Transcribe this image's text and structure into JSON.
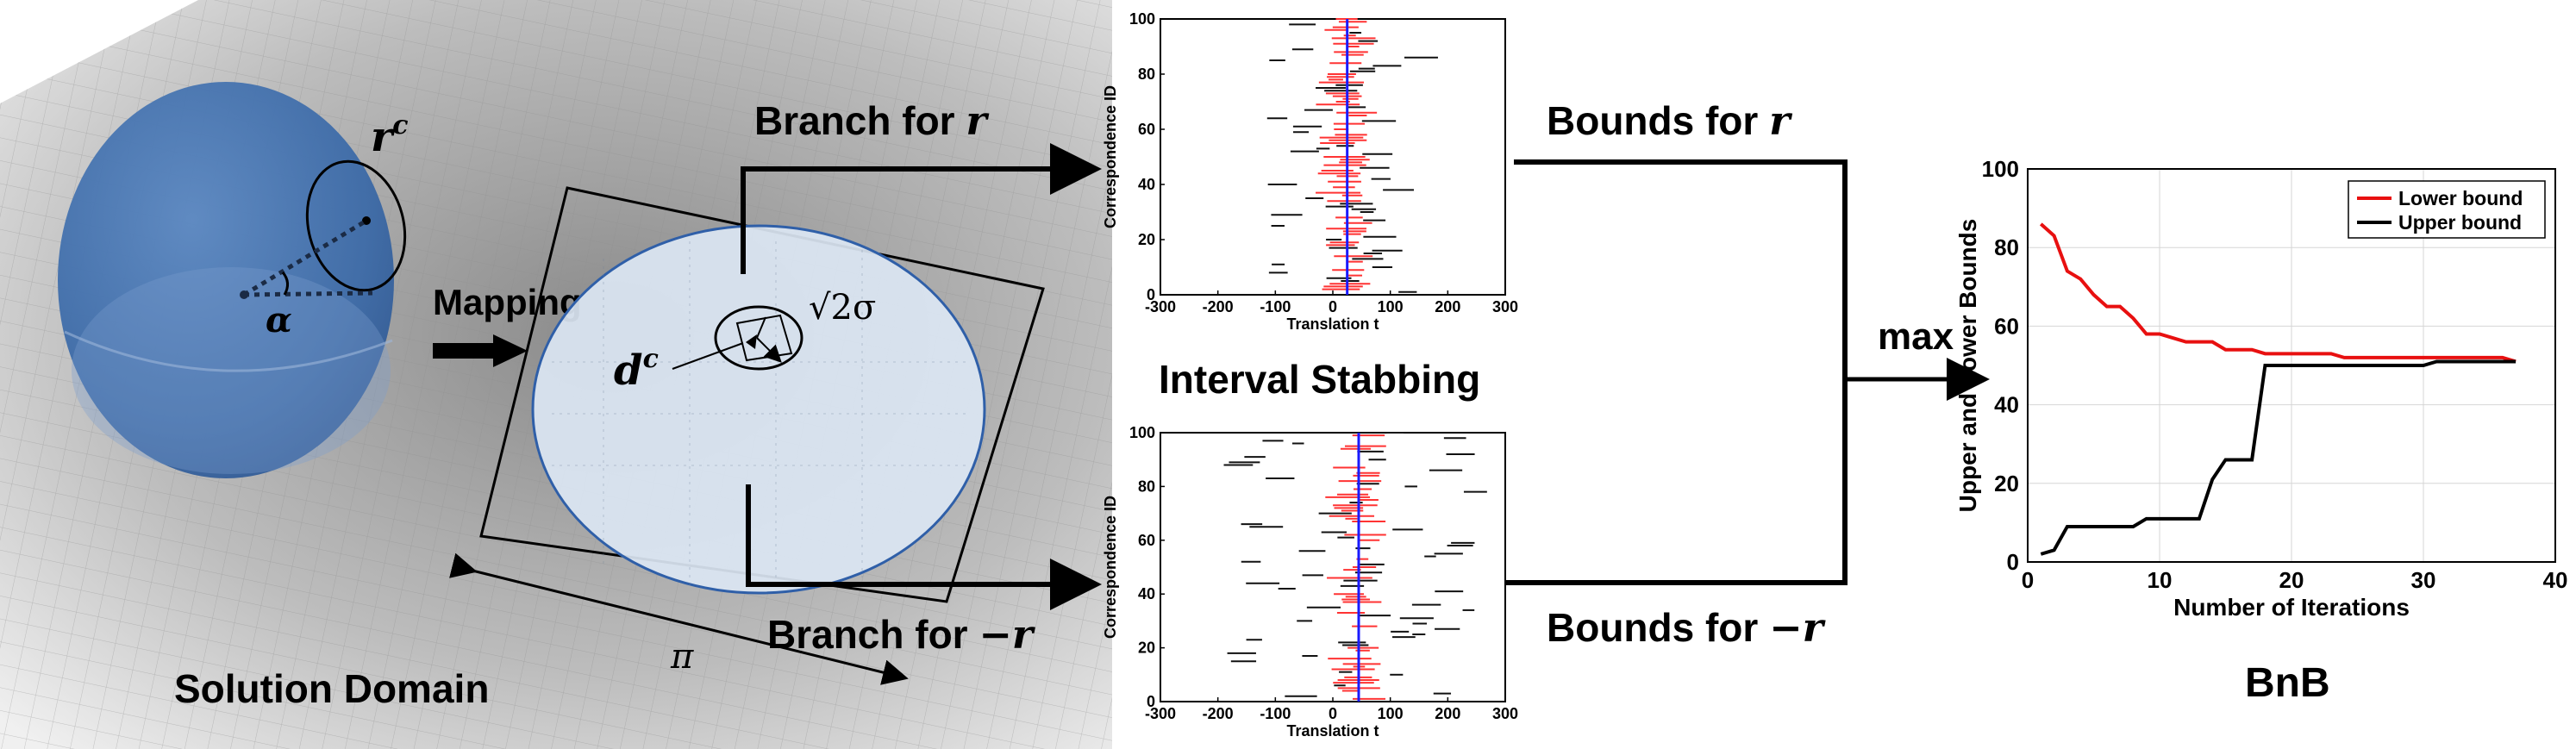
{
  "labels": {
    "solution_domain": "Solution Domain",
    "mapping": "Mapping",
    "branch_r": "Branch for ",
    "branch_neg_r": "Branch for ",
    "bounds_r": "Bounds for ",
    "bounds_neg_r": "Bounds for ",
    "interval_stabbing": "Interval Stabbing",
    "max": "max",
    "bnb": "BnB",
    "alpha": "α",
    "pi": "π",
    "rc_base": "r",
    "rc_sup": "c",
    "dc_base": "d",
    "dc_sup": "c",
    "sqrt2sigma": "√2σ",
    "r_sym": "r",
    "neg_r_sym": "−r"
  },
  "chart_data": [
    {
      "type": "scatter",
      "title": "",
      "xlabel": "Translation t",
      "ylabel": "Correspondence ID",
      "xlim": [
        -300,
        300
      ],
      "ylim": [
        0,
        100
      ],
      "xticks": [
        -300,
        -200,
        -100,
        0,
        100,
        200,
        300
      ],
      "yticks": [
        0,
        20,
        40,
        60,
        80,
        100
      ],
      "vline_x": 25,
      "colors": {
        "inlier": "#ff3333",
        "outlier": "#111111",
        "vline": "#1a1aff"
      },
      "note_intervals": "horizontal intervals per correspondence"
    },
    {
      "type": "scatter",
      "title": "",
      "xlabel": "Translation t",
      "ylabel": "Correspondence ID",
      "xlim": [
        -300,
        300
      ],
      "ylim": [
        0,
        100
      ],
      "xticks": [
        -300,
        -200,
        -100,
        0,
        100,
        200,
        300
      ],
      "yticks": [
        0,
        20,
        40,
        60,
        80,
        100
      ],
      "vline_x": 45,
      "colors": {
        "inlier": "#ff3333",
        "outlier": "#111111",
        "vline": "#1a1aff"
      }
    },
    {
      "type": "line",
      "title": "",
      "xlabel": "Number of Iterations",
      "ylabel": "Upper and Lower Bounds",
      "xlim": [
        0,
        40
      ],
      "ylim": [
        0,
        100
      ],
      "xticks": [
        0,
        10,
        20,
        30,
        40
      ],
      "yticks": [
        0,
        20,
        40,
        60,
        80,
        100
      ],
      "grid": true,
      "legend_position": "top-right",
      "series": [
        {
          "name": "Lower bound",
          "color": "#e81010",
          "x": [
            1,
            2,
            3,
            4,
            5,
            6,
            7,
            8,
            9,
            10,
            11,
            12,
            13,
            14,
            15,
            16,
            17,
            18,
            19,
            20,
            21,
            22,
            23,
            24,
            25,
            26,
            27,
            28,
            29,
            30,
            31,
            32,
            33,
            34,
            35,
            36,
            37
          ],
          "y": [
            86,
            83,
            74,
            72,
            68,
            65,
            65,
            62,
            58,
            58,
            57,
            56,
            56,
            56,
            54,
            54,
            54,
            53,
            53,
            53,
            53,
            53,
            53,
            52,
            52,
            52,
            52,
            52,
            52,
            52,
            52,
            52,
            52,
            52,
            52,
            52,
            51
          ]
        },
        {
          "name": "Upper bound",
          "color": "#000000",
          "x": [
            1,
            2,
            3,
            4,
            5,
            6,
            7,
            8,
            9,
            10,
            11,
            12,
            13,
            14,
            15,
            16,
            17,
            18,
            19,
            20,
            21,
            22,
            23,
            24,
            25,
            26,
            27,
            28,
            29,
            30,
            31,
            32,
            33,
            34,
            35,
            36,
            37
          ],
          "y": [
            2,
            3,
            9,
            9,
            9,
            9,
            9,
            9,
            11,
            11,
            11,
            11,
            11,
            21,
            26,
            26,
            26,
            50,
            50,
            50,
            50,
            50,
            50,
            50,
            50,
            50,
            50,
            50,
            50,
            50,
            51,
            51,
            51,
            51,
            51,
            51,
            51
          ]
        }
      ]
    }
  ]
}
